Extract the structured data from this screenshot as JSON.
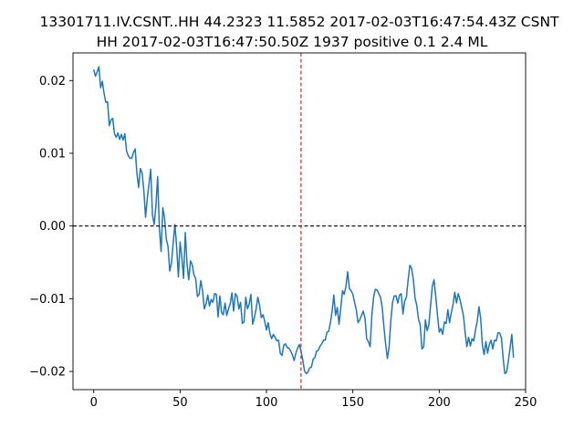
{
  "chart_data": {
    "type": "line",
    "title_lines": [
      "13301711.IV.CSNT..HH 44.2323 11.5852 2017-02-03T16:47:54.43Z CSNT",
      "HH 2017-02-03T16:47:50.50Z 1937 positive 0.1 2.4 ML"
    ],
    "xlabel": "",
    "ylabel": "",
    "xlim": [
      -12,
      250
    ],
    "ylim": [
      -0.0225,
      0.0238
    ],
    "xticks": [
      0,
      50,
      100,
      150,
      200,
      250
    ],
    "xtick_labels": [
      "0",
      "50",
      "100",
      "150",
      "200",
      "250"
    ],
    "yticks": [
      -0.02,
      -0.01,
      0.0,
      0.01,
      0.02
    ],
    "ytick_labels": [
      "−0.02",
      "−0.01",
      "0.00",
      "0.01",
      "0.02"
    ],
    "grid": false,
    "reference_lines": [
      {
        "orientation": "horizontal",
        "value": 0.0,
        "color": "#000000",
        "style": "dashed"
      },
      {
        "orientation": "vertical",
        "value": 120,
        "color": "#d62728",
        "style": "dashed"
      }
    ],
    "series": [
      {
        "color": "#1f77b4",
        "x_start": 0,
        "x_step": 1,
        "values": [
          0.0215,
          0.0206,
          0.0212,
          0.0219,
          0.019,
          0.0199,
          0.0182,
          0.017,
          0.0171,
          0.0138,
          0.0146,
          0.0148,
          0.0127,
          0.0122,
          0.0128,
          0.0119,
          0.0126,
          0.0118,
          0.0127,
          0.0103,
          0.0097,
          0.0093,
          0.0093,
          0.0101,
          0.0106,
          0.0072,
          0.0053,
          0.0079,
          0.0073,
          0.0049,
          0.0012,
          0.0038,
          0.0058,
          0.0078,
          0.0015,
          0.0002,
          0.0028,
          0.0068,
          -0.0003,
          -0.0035,
          0.0025,
          0.0011,
          -0.0018,
          -0.0028,
          -0.0062,
          -0.0051,
          -0.0023,
          0.0002,
          -0.0029,
          -0.007,
          -0.0022,
          -0.0043,
          -0.0072,
          -0.0009,
          -0.0052,
          -0.0074,
          -0.0048,
          -0.0053,
          -0.0067,
          -0.0072,
          -0.0097,
          -0.0094,
          -0.0075,
          -0.0089,
          -0.0114,
          -0.0107,
          -0.0095,
          -0.011,
          -0.0101,
          -0.0105,
          -0.0093,
          -0.0094,
          -0.0125,
          -0.0096,
          -0.0119,
          -0.0122,
          -0.0106,
          -0.0123,
          -0.0114,
          -0.0107,
          -0.0092,
          -0.0117,
          -0.0093,
          -0.0097,
          -0.0114,
          -0.0105,
          -0.0134,
          -0.0132,
          -0.0098,
          -0.0114,
          -0.0107,
          -0.0094,
          -0.0135,
          -0.0126,
          -0.0114,
          -0.0098,
          -0.0109,
          -0.0126,
          -0.0122,
          -0.0131,
          -0.0143,
          -0.0133,
          -0.0148,
          -0.0155,
          -0.0149,
          -0.0153,
          -0.0158,
          -0.0157,
          -0.0175,
          -0.0178,
          -0.0164,
          -0.0162,
          -0.0167,
          -0.0168,
          -0.0172,
          -0.0177,
          -0.0185,
          -0.0175,
          -0.0168,
          -0.0163,
          -0.0172,
          -0.0184,
          -0.0199,
          -0.0203,
          -0.0201,
          -0.0195,
          -0.0194,
          -0.0183,
          -0.0181,
          -0.0172,
          -0.0171,
          -0.0165,
          -0.0162,
          -0.0157,
          -0.0157,
          -0.0146,
          -0.0145,
          -0.0133,
          -0.0117,
          -0.0095,
          -0.0123,
          -0.0112,
          -0.0135,
          -0.0113,
          -0.0089,
          -0.0094,
          -0.0083,
          -0.0063,
          -0.0086,
          -0.0089,
          -0.0094,
          -0.0105,
          -0.0115,
          -0.0133,
          -0.0129,
          -0.0123,
          -0.0117,
          -0.0126,
          -0.0155,
          -0.0159,
          -0.0166,
          -0.0123,
          -0.0098,
          -0.0087,
          -0.0088,
          -0.0093,
          -0.0098,
          -0.0112,
          -0.0139,
          -0.0163,
          -0.0182,
          -0.0166,
          -0.0129,
          -0.0105,
          -0.0096,
          -0.0096,
          -0.0106,
          -0.0095,
          -0.0093,
          -0.0121,
          -0.0103,
          -0.0098,
          -0.0074,
          -0.0054,
          -0.0058,
          -0.0073,
          -0.0099,
          -0.0109,
          -0.0128,
          -0.0136,
          -0.0169,
          -0.0166,
          -0.0129,
          -0.0144,
          -0.0136,
          -0.0109,
          -0.0083,
          -0.0074,
          -0.0097,
          -0.0123,
          -0.0146,
          -0.0141,
          -0.0149,
          -0.0132,
          -0.0134,
          -0.0115,
          -0.0133,
          -0.0119,
          -0.0108,
          -0.0091,
          -0.0106,
          -0.0093,
          -0.0101,
          -0.0112,
          -0.0123,
          -0.0146,
          -0.0166,
          -0.0153,
          -0.0165,
          -0.0155,
          -0.0158,
          -0.0143,
          -0.0131,
          -0.0111,
          -0.0127,
          -0.0164,
          -0.0177,
          -0.0159,
          -0.0175,
          -0.0163,
          -0.0157,
          -0.0169,
          -0.0157,
          -0.0158,
          -0.0147,
          -0.0147,
          -0.0154,
          -0.0182,
          -0.0203,
          -0.0201,
          -0.0186,
          -0.0168,
          -0.0149,
          -0.0181
        ]
      }
    ]
  }
}
